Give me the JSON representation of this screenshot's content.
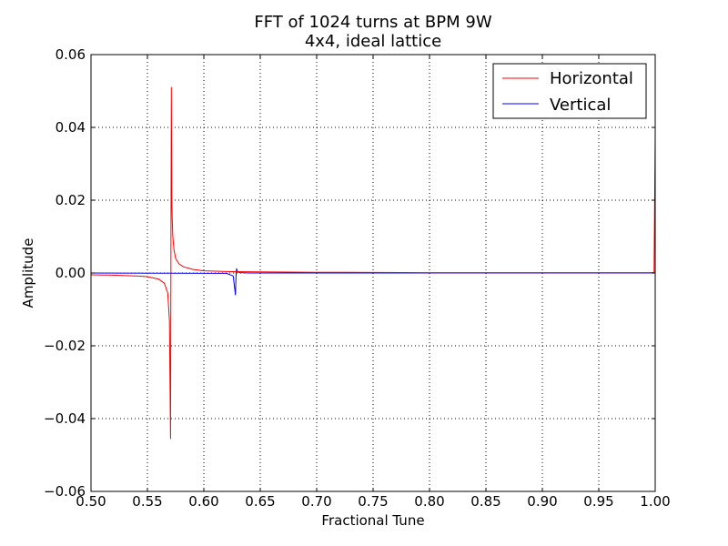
{
  "chart_data": {
    "type": "line",
    "title": "FFT of 1024 turns at BPM 9W",
    "subtitle": "4x4, ideal lattice",
    "xlabel": "Fractional Tune",
    "ylabel": "Amplitude",
    "xlim": [
      0.5,
      1.0
    ],
    "ylim": [
      -0.06,
      0.06
    ],
    "xticks": [
      0.5,
      0.55,
      0.6,
      0.65,
      0.7,
      0.75,
      0.8,
      0.85,
      0.9,
      0.95,
      1.0
    ],
    "xtick_labels": [
      "0.50",
      "0.55",
      "0.60",
      "0.65",
      "0.70",
      "0.75",
      "0.80",
      "0.85",
      "0.90",
      "0.95",
      "1.00"
    ],
    "yticks": [
      -0.06,
      -0.04,
      -0.02,
      0.0,
      0.02,
      0.04,
      0.06
    ],
    "ytick_labels": [
      "−0.06",
      "−0.04",
      "−0.02",
      "0.00",
      "0.02",
      "0.04",
      "0.06"
    ],
    "grid": true,
    "legend_position": "top-right",
    "series": [
      {
        "name": "Horizontal",
        "color": "#ff0000",
        "x": [
          0.5,
          0.52,
          0.54,
          0.55,
          0.56,
          0.565,
          0.568,
          0.5695,
          0.5705,
          0.5708,
          0.5712,
          0.5716,
          0.572,
          0.5725,
          0.5735,
          0.575,
          0.578,
          0.582,
          0.59,
          0.6,
          0.62,
          0.65,
          0.7,
          0.75,
          0.8,
          0.85,
          0.9,
          0.95,
          0.999,
          1.0
        ],
        "y": [
          -0.0005,
          -0.0006,
          -0.0008,
          -0.001,
          -0.0017,
          -0.0028,
          -0.0055,
          -0.013,
          -0.0455,
          0.0,
          0.051,
          0.02,
          0.0145,
          0.01,
          0.0065,
          0.004,
          0.0025,
          0.0017,
          0.001,
          0.0006,
          0.0004,
          0.0003,
          0.0002,
          0.00015,
          0.0001,
          0.0001,
          8e-05,
          8e-05,
          0.0001,
          0.038
        ]
      },
      {
        "name": "Vertical",
        "color": "#0000ff",
        "x": [
          0.5,
          0.62,
          0.626,
          0.628,
          0.6285,
          0.629,
          0.6295,
          0.63,
          0.632,
          0.64,
          0.7,
          0.8,
          0.9,
          1.0
        ],
        "y": [
          0.0,
          -0.0001,
          -0.0008,
          -0.006,
          -0.001,
          0.0012,
          0.0006,
          0.0003,
          0.0001,
          0.0,
          0.0,
          0.0,
          0.0,
          0.0
        ]
      }
    ]
  }
}
